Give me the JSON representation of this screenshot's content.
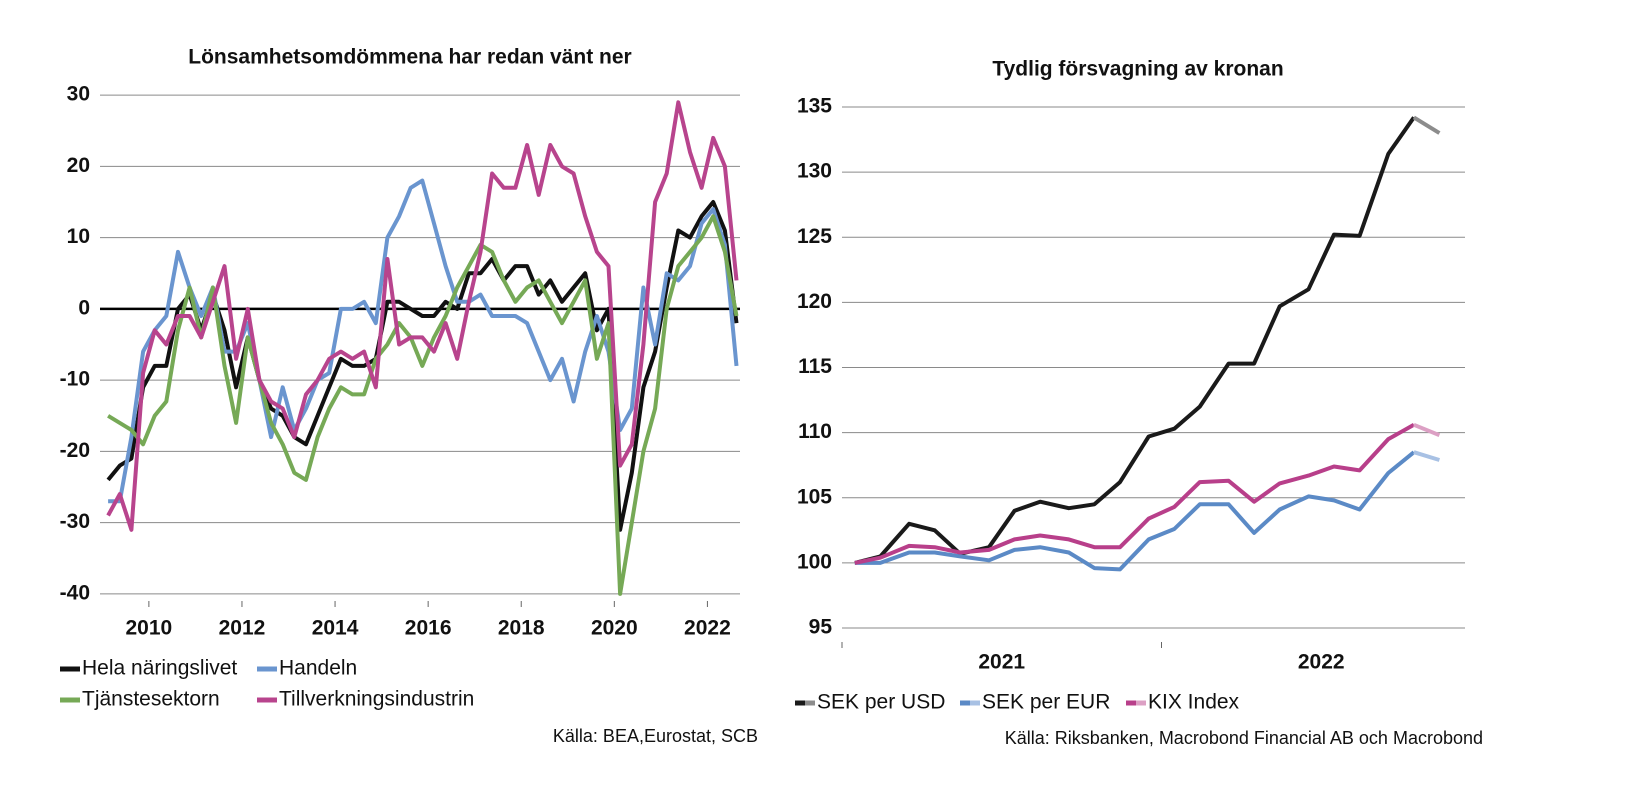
{
  "chart_data": [
    {
      "type": "line",
      "title": "Lönsamhetsomdömmena har redan vänt ner",
      "x": [
        2009.125,
        2009.375,
        2009.625,
        2009.875,
        2010.125,
        2010.375,
        2010.625,
        2010.875,
        2011.125,
        2011.375,
        2011.625,
        2011.875,
        2012.125,
        2012.375,
        2012.625,
        2012.875,
        2013.125,
        2013.375,
        2013.625,
        2013.875,
        2014.125,
        2014.375,
        2014.625,
        2014.875,
        2015.125,
        2015.375,
        2015.625,
        2015.875,
        2016.125,
        2016.375,
        2016.625,
        2016.875,
        2017.125,
        2017.375,
        2017.625,
        2017.875,
        2018.125,
        2018.375,
        2018.625,
        2018.875,
        2019.125,
        2019.375,
        2019.625,
        2019.875,
        2020.125,
        2020.375,
        2020.625,
        2020.875,
        2021.125,
        2021.375,
        2021.625,
        2021.875,
        2022.125,
        2022.375,
        2022.625
      ],
      "series": [
        {
          "name": "Hela näringslivet",
          "color": "#111111",
          "values": [
            -24,
            -22,
            -21,
            -11,
            -8,
            -8,
            0,
            2,
            -3,
            2,
            -3,
            -11,
            -4,
            -10,
            -14,
            -15,
            -18,
            -19,
            -15,
            -11,
            -7,
            -8,
            -8,
            -7,
            1,
            1,
            0,
            -1,
            -1,
            1,
            0,
            5,
            5,
            7,
            4,
            6,
            6,
            2,
            4,
            1,
            3,
            5,
            -3,
            0,
            -31,
            -23,
            -11,
            -6,
            3,
            11,
            10,
            13,
            15,
            11,
            -2
          ]
        },
        {
          "name": "Handeln",
          "color": "#6a95cf",
          "values": [
            -27,
            -27,
            -18,
            -6,
            -3,
            -1,
            8,
            3,
            -1,
            3,
            -6,
            -6,
            -2,
            -10,
            -18,
            -11,
            -17,
            -14,
            -10,
            -9,
            0,
            0,
            1,
            -2,
            10,
            13,
            17,
            18,
            12,
            6,
            1,
            1,
            2,
            -1,
            -1,
            -1,
            -2,
            -6,
            -10,
            -7,
            -13,
            -6,
            -1,
            -6,
            -17,
            -14,
            3,
            -5,
            5,
            4,
            6,
            12,
            14,
            9,
            -8
          ]
        },
        {
          "name": "Tjänstesektorn",
          "color": "#76a956",
          "values": [
            -15,
            -16,
            -17,
            -19,
            -15,
            -13,
            -3,
            3,
            -4,
            3,
            -8,
            -16,
            -4,
            -10,
            -16,
            -19,
            -23,
            -24,
            -18,
            -14,
            -11,
            -12,
            -12,
            -7,
            -5,
            -2,
            -4,
            -8,
            -4,
            -1,
            3,
            6,
            9,
            8,
            4,
            1,
            3,
            4,
            1,
            -2,
            1,
            4,
            -7,
            -2,
            -40,
            -30,
            -20,
            -14,
            0,
            6,
            8,
            10,
            13,
            8,
            -1
          ]
        },
        {
          "name": "Tillverkningsindustrin",
          "color": "#b8448d",
          "values": [
            -29,
            -26,
            -31,
            -9,
            -3,
            -5,
            -1,
            -1,
            -4,
            1,
            6,
            -7,
            0,
            -10,
            -13,
            -14,
            -18,
            -12,
            -10,
            -7,
            -6,
            -7,
            -6,
            -11,
            7,
            -5,
            -4,
            -4,
            -6,
            -2,
            -7,
            1,
            8,
            19,
            17,
            17,
            23,
            16,
            23,
            20,
            19,
            13,
            8,
            6,
            -22,
            -19,
            -5,
            15,
            19,
            29,
            22,
            17,
            24,
            20,
            4
          ]
        }
      ],
      "xlim": [
        2008.95,
        2022.7
      ],
      "xticks": [
        2010,
        2012,
        2014,
        2016,
        2018,
        2020,
        2022
      ],
      "ylim": [
        -41,
        31
      ],
      "yticks": [
        30,
        20,
        10,
        0,
        -10,
        -20,
        -30,
        -40
      ],
      "grid": true,
      "zero_line": true,
      "source": "Källa: BEA,Eurostat, SCB"
    },
    {
      "type": "line",
      "title": "Tydlig försvagning av kronan",
      "x": [
        2021.04,
        2021.12,
        2021.21,
        2021.29,
        2021.37,
        2021.46,
        2021.54,
        2021.62,
        2021.71,
        2021.79,
        2021.87,
        2021.96,
        2022.04,
        2022.12,
        2022.21,
        2022.29,
        2022.37,
        2022.46,
        2022.54,
        2022.62,
        2022.71,
        2022.79,
        2022.87
      ],
      "series": [
        {
          "name": "SEK per USD",
          "color": "#1a1a1a",
          "last_color": "#8c8c8c",
          "values": [
            100,
            100.5,
            103,
            102.5,
            100.7,
            101.2,
            104,
            104.7,
            104.2,
            104.5,
            106.2,
            109.7,
            110.3,
            112,
            115.3,
            115.3,
            119.7,
            121,
            125.2,
            125.1,
            131.4,
            134.2,
            133
          ]
        },
        {
          "name": "SEK per EUR",
          "color": "#5b8ac6",
          "last_color": "#a8c1e4",
          "values": [
            100,
            100,
            100.8,
            100.8,
            100.5,
            100.2,
            101,
            101.2,
            100.8,
            99.6,
            99.5,
            101.8,
            102.6,
            104.5,
            104.5,
            102.3,
            104.1,
            105.1,
            104.8,
            104.1,
            106.9,
            108.5,
            107.9
          ]
        },
        {
          "name": "KIX Index",
          "color": "#b83f8a",
          "last_color": "#dca0c4",
          "values": [
            100,
            100.4,
            101.3,
            101.2,
            100.8,
            101,
            101.8,
            102.1,
            101.8,
            101.2,
            101.2,
            103.4,
            104.3,
            106.2,
            106.3,
            104.7,
            106.1,
            106.7,
            107.4,
            107.1,
            109.5,
            110.6,
            109.8
          ]
        }
      ],
      "xlim": [
        2021,
        2022.95
      ],
      "xticks": [
        {
          "value": 2021.5,
          "label": "2021"
        },
        {
          "value": 2022.5,
          "label": "2022"
        }
      ],
      "ylim": [
        95,
        135
      ],
      "yticks": [
        135,
        130,
        125,
        120,
        115,
        110,
        105,
        100,
        95
      ],
      "grid": true,
      "source": "Källa: Riksbanken, Macrobond Financial AB och Macrobond"
    }
  ]
}
